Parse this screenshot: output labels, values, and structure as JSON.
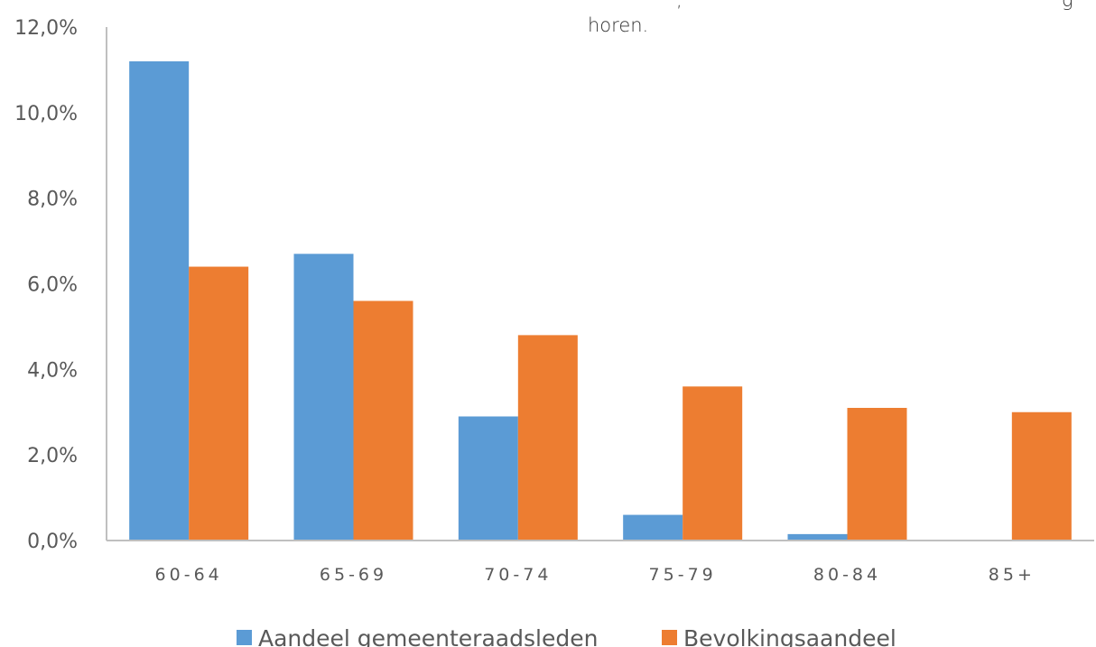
{
  "text_fragments": {
    "top_line_comma": ",",
    "top_line_end": "g",
    "second_line": "horen."
  },
  "colors": {
    "series_1": "#5b9bd5",
    "series_2": "#ed7d31",
    "axis": "#bfbfbf",
    "text": "#595959"
  },
  "chart_data": {
    "type": "bar",
    "categories": [
      "60-64",
      "65-69",
      "70-74",
      "75-79",
      "80-84",
      "85+"
    ],
    "series": [
      {
        "name": "Aandeel gemeenteraadsleden",
        "values": [
          11.2,
          6.7,
          2.9,
          0.6,
          0.15,
          0.0
        ]
      },
      {
        "name": "Bevolkingsaandeel",
        "values": [
          6.4,
          5.6,
          4.8,
          3.6,
          3.1,
          3.0
        ]
      }
    ],
    "yticks": [
      "0,0%",
      "2,0%",
      "4,0%",
      "6,0%",
      "8,0%",
      "10,0%",
      "12,0%"
    ],
    "ylim": [
      0,
      12
    ],
    "grid": false,
    "legend_position": "bottom"
  }
}
